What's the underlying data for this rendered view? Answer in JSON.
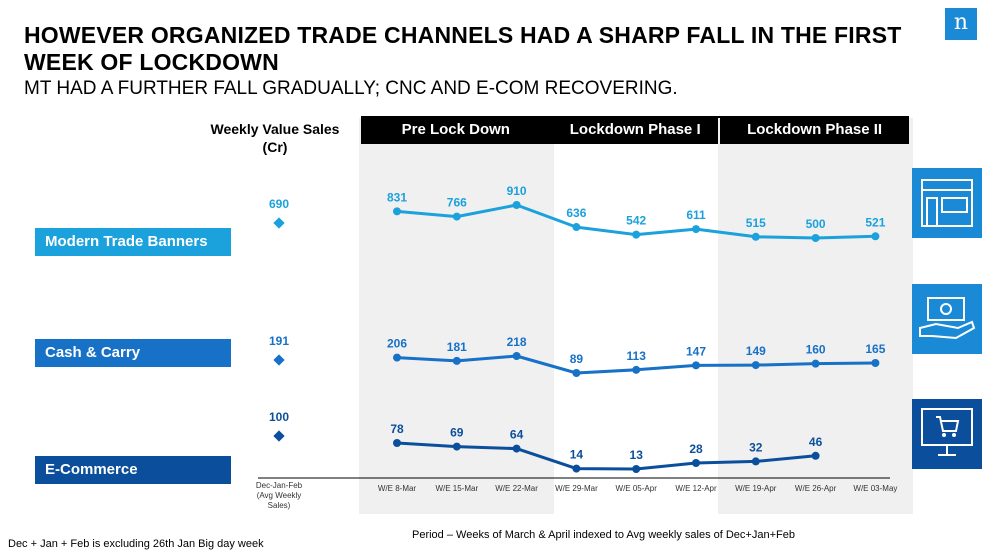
{
  "header": {
    "title": "HOWEVER ORGANIZED TRADE CHANNELS HAD A SHARP FALL IN THE FIRST WEEK OF LOCKDOWN",
    "subtitle": "MT HAD A FURTHER FALL GRADUALLY; CNC AND E-COM RECOVERING.",
    "logo": "n"
  },
  "chart_data": {
    "type": "line",
    "ylabel": "Weekly Value Sales (Cr)",
    "baseline": {
      "label": "Dec-Jan-Feb (Avg Weekly Sales)",
      "values": {
        "Modern Trade Banners": 690,
        "Cash & Carry": 191,
        "E-Commerce": 100
      }
    },
    "categories": [
      "W/E 8-Mar",
      "W/E 15-Mar",
      "W/E 22-Mar",
      "W/E 29-Mar",
      "W/E 05-Apr",
      "W/E 12-Apr",
      "W/E 19-Apr",
      "W/E 26-Apr",
      "W/E 03-May"
    ],
    "phases": [
      {
        "label": "Pre Lock Down",
        "from": 0,
        "to": 2,
        "shaded": true
      },
      {
        "label": "Lockdown Phase I",
        "from": 3,
        "to": 5,
        "shaded": false
      },
      {
        "label": "Lockdown Phase II",
        "from": 6,
        "to": 8,
        "shaded": true
      }
    ],
    "series": [
      {
        "name": "Modern Trade Banners",
        "color": "#1ba1db",
        "values": [
          831,
          766,
          910,
          636,
          542,
          611,
          515,
          500,
          521
        ]
      },
      {
        "name": "Cash & Carry",
        "color": "#1771c6",
        "values": [
          206,
          181,
          218,
          89,
          113,
          147,
          149,
          160,
          165
        ]
      },
      {
        "name": "E-Commerce",
        "color": "#0b4f9c",
        "values": [
          78,
          69,
          64,
          14,
          13,
          28,
          32,
          46,
          null
        ]
      }
    ],
    "grid": false
  },
  "footnotes": {
    "period": "Period – Weeks of March & April indexed to Avg weekly sales of Dec+Jan+Feb",
    "exclusion": "Dec + Jan + Feb is excluding 26th Jan Big day week"
  },
  "icons": [
    "store-front-icon",
    "hand-cash-icon",
    "ecommerce-cart-icon"
  ]
}
